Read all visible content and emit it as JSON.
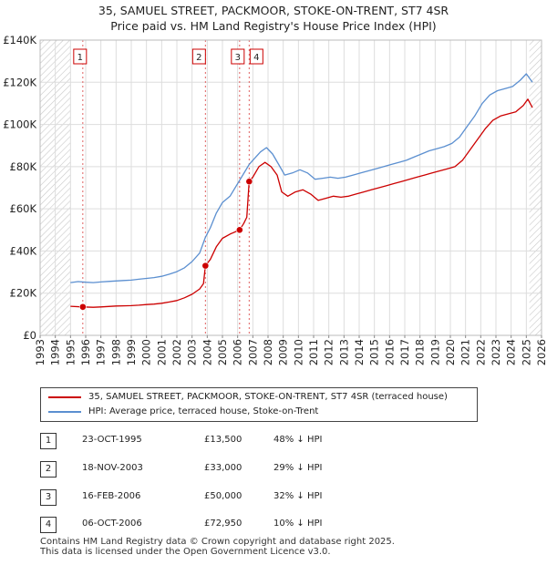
{
  "chart_data": {
    "type": "line",
    "title": "35, SAMUEL STREET, PACKMOOR, STOKE-ON-TRENT, ST7 4SR",
    "subtitle": "Price paid vs. HM Land Registry's House Price Index (HPI)",
    "xlim": [
      1993,
      2026
    ],
    "ylim": [
      0,
      140000
    ],
    "x_ticks": [
      "1993",
      "1994",
      "1995",
      "1996",
      "1997",
      "1998",
      "1999",
      "2000",
      "2001",
      "2002",
      "2003",
      "2004",
      "2005",
      "2006",
      "2007",
      "2008",
      "2009",
      "2010",
      "2011",
      "2012",
      "2013",
      "2014",
      "2015",
      "2016",
      "2017",
      "2018",
      "2019",
      "2020",
      "2021",
      "2022",
      "2023",
      "2024",
      "2025",
      "2026"
    ],
    "y_ticks": [
      {
        "value": 0,
        "label": "£0"
      },
      {
        "value": 20000,
        "label": "£20K"
      },
      {
        "value": 40000,
        "label": "£40K"
      },
      {
        "value": 60000,
        "label": "£60K"
      },
      {
        "value": 80000,
        "label": "£80K"
      },
      {
        "value": 100000,
        "label": "£100K"
      },
      {
        "value": 120000,
        "label": "£120K"
      },
      {
        "value": 140000,
        "label": "£140K"
      }
    ],
    "hatched_ranges": [
      [
        1993,
        1995
      ],
      [
        2025.2,
        2026
      ]
    ],
    "series": [
      {
        "name": "35, SAMUEL STREET, PACKMOOR, STOKE-ON-TRENT, ST7 4SR (terraced house)",
        "color": "#cc0000",
        "points": [
          [
            1995.0,
            13800
          ],
          [
            1995.81,
            13500
          ],
          [
            1996.5,
            13300
          ],
          [
            1997.0,
            13500
          ],
          [
            1997.5,
            13700
          ],
          [
            1998.0,
            13900
          ],
          [
            1998.5,
            14000
          ],
          [
            1999.0,
            14100
          ],
          [
            1999.5,
            14300
          ],
          [
            2000.0,
            14600
          ],
          [
            2000.5,
            14800
          ],
          [
            2001.0,
            15200
          ],
          [
            2001.5,
            15800
          ],
          [
            2002.0,
            16500
          ],
          [
            2002.5,
            17800
          ],
          [
            2003.0,
            19500
          ],
          [
            2003.5,
            22000
          ],
          [
            2003.75,
            24500
          ],
          [
            2003.88,
            33000
          ],
          [
            2004.2,
            36000
          ],
          [
            2004.6,
            42000
          ],
          [
            2005.0,
            46000
          ],
          [
            2005.5,
            48000
          ],
          [
            2006.13,
            50000
          ],
          [
            2006.4,
            53000
          ],
          [
            2006.6,
            56000
          ],
          [
            2006.76,
            72950
          ],
          [
            2007.0,
            75000
          ],
          [
            2007.4,
            80000
          ],
          [
            2007.8,
            82000
          ],
          [
            2008.2,
            80000
          ],
          [
            2008.6,
            76000
          ],
          [
            2008.9,
            68000
          ],
          [
            2009.3,
            66000
          ],
          [
            2009.8,
            68000
          ],
          [
            2010.3,
            69000
          ],
          [
            2010.8,
            67000
          ],
          [
            2011.3,
            64000
          ],
          [
            2011.8,
            65000
          ],
          [
            2012.3,
            66000
          ],
          [
            2012.8,
            65500
          ],
          [
            2013.3,
            66000
          ],
          [
            2013.8,
            67000
          ],
          [
            2014.3,
            68000
          ],
          [
            2014.8,
            69000
          ],
          [
            2015.3,
            70000
          ],
          [
            2015.8,
            71000
          ],
          [
            2016.3,
            72000
          ],
          [
            2016.8,
            73000
          ],
          [
            2017.3,
            74000
          ],
          [
            2017.8,
            75000
          ],
          [
            2018.3,
            76000
          ],
          [
            2018.8,
            77000
          ],
          [
            2019.3,
            78000
          ],
          [
            2019.8,
            79000
          ],
          [
            2020.3,
            80000
          ],
          [
            2020.8,
            83000
          ],
          [
            2021.3,
            88000
          ],
          [
            2021.8,
            93000
          ],
          [
            2022.3,
            98000
          ],
          [
            2022.8,
            102000
          ],
          [
            2023.3,
            104000
          ],
          [
            2023.8,
            105000
          ],
          [
            2024.3,
            106000
          ],
          [
            2024.8,
            109000
          ],
          [
            2025.1,
            112000
          ],
          [
            2025.4,
            108000
          ]
        ]
      },
      {
        "name": "HPI: Average price, terraced house, Stoke-on-Trent",
        "color": "#5b8fd0",
        "points": [
          [
            1995.0,
            25000
          ],
          [
            1995.5,
            25500
          ],
          [
            1996.0,
            25200
          ],
          [
            1996.5,
            25000
          ],
          [
            1997.0,
            25300
          ],
          [
            1997.5,
            25600
          ],
          [
            1998.0,
            25800
          ],
          [
            1998.5,
            26000
          ],
          [
            1999.0,
            26200
          ],
          [
            1999.5,
            26600
          ],
          [
            2000.0,
            27000
          ],
          [
            2000.5,
            27400
          ],
          [
            2001.0,
            28000
          ],
          [
            2001.5,
            29000
          ],
          [
            2002.0,
            30200
          ],
          [
            2002.5,
            32000
          ],
          [
            2003.0,
            35000
          ],
          [
            2003.5,
            39000
          ],
          [
            2003.88,
            46500
          ],
          [
            2004.2,
            51000
          ],
          [
            2004.6,
            58000
          ],
          [
            2005.0,
            63000
          ],
          [
            2005.5,
            66000
          ],
          [
            2006.13,
            73500
          ],
          [
            2006.76,
            81000
          ],
          [
            2007.0,
            83000
          ],
          [
            2007.5,
            87000
          ],
          [
            2007.9,
            89000
          ],
          [
            2008.3,
            86000
          ],
          [
            2008.7,
            81000
          ],
          [
            2009.1,
            76000
          ],
          [
            2009.6,
            77000
          ],
          [
            2010.1,
            78500
          ],
          [
            2010.6,
            77000
          ],
          [
            2011.1,
            74000
          ],
          [
            2011.6,
            74500
          ],
          [
            2012.1,
            75000
          ],
          [
            2012.6,
            74500
          ],
          [
            2013.1,
            75000
          ],
          [
            2013.6,
            76000
          ],
          [
            2014.1,
            77000
          ],
          [
            2014.6,
            78000
          ],
          [
            2015.1,
            79000
          ],
          [
            2015.6,
            80000
          ],
          [
            2016.1,
            81000
          ],
          [
            2016.6,
            82000
          ],
          [
            2017.1,
            83000
          ],
          [
            2017.6,
            84500
          ],
          [
            2018.1,
            86000
          ],
          [
            2018.6,
            87500
          ],
          [
            2019.1,
            88500
          ],
          [
            2019.6,
            89500
          ],
          [
            2020.1,
            91000
          ],
          [
            2020.6,
            94000
          ],
          [
            2021.1,
            99000
          ],
          [
            2021.6,
            104000
          ],
          [
            2022.1,
            110000
          ],
          [
            2022.6,
            114000
          ],
          [
            2023.1,
            116000
          ],
          [
            2023.6,
            117000
          ],
          [
            2024.1,
            118000
          ],
          [
            2024.6,
            121000
          ],
          [
            2025.0,
            124000
          ],
          [
            2025.4,
            120000
          ]
        ]
      }
    ],
    "sales": [
      {
        "id": "1",
        "date": "23-OCT-1995",
        "x": 1995.81,
        "price": 13500,
        "price_label": "£13,500",
        "diff": "48% ↓ HPI"
      },
      {
        "id": "2",
        "date": "18-NOV-2003",
        "x": 2003.88,
        "price": 33000,
        "price_label": "£33,000",
        "diff": "29% ↓ HPI"
      },
      {
        "id": "3",
        "date": "16-FEB-2006",
        "x": 2006.13,
        "price": 50000,
        "price_label": "£50,000",
        "diff": "32% ↓ HPI"
      },
      {
        "id": "4",
        "date": "06-OCT-2006",
        "x": 2006.76,
        "price": 72950,
        "price_label": "£72,950",
        "diff": "10% ↓ HPI"
      }
    ]
  },
  "legend": {
    "items": [
      {
        "label": "35, SAMUEL STREET, PACKMOOR, STOKE-ON-TRENT, ST7 4SR (terraced house)",
        "color": "#cc0000"
      },
      {
        "label": "HPI: Average price, terraced house, Stoke-on-Trent",
        "color": "#5b8fd0"
      }
    ]
  },
  "footer": {
    "line1": "Contains HM Land Registry data © Crown copyright and database right 2025.",
    "line2": "This data is licensed under the Open Government Licence v3.0."
  }
}
